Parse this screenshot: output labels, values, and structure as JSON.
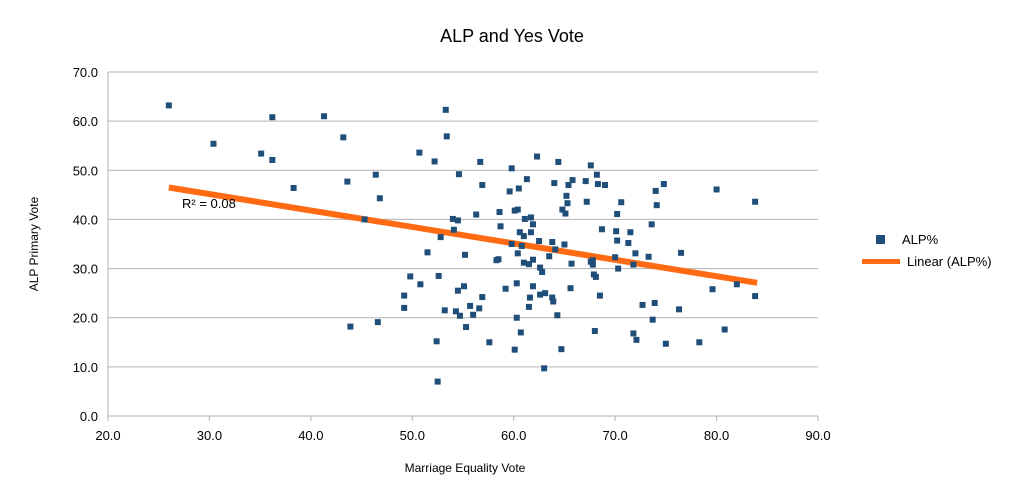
{
  "chart_data": {
    "type": "scatter",
    "title": "ALP and Yes Vote",
    "xlabel": "Marriage Equality Vote",
    "ylabel": "ALP Primary Vote",
    "xlim": [
      20,
      90
    ],
    "ylim": [
      0,
      70
    ],
    "x_ticks": [
      "20.0",
      "30.0",
      "40.0",
      "50.0",
      "60.0",
      "70.0",
      "80.0",
      "90.0"
    ],
    "y_ticks": [
      "0.0",
      "10.0",
      "20.0",
      "30.0",
      "40.0",
      "50.0",
      "60.0",
      "70.0"
    ],
    "grid": "horizontal",
    "legend": "right",
    "series": [
      {
        "name": "ALP%",
        "color": "#1f4e79",
        "marker": "square",
        "points": [
          [
            26.0,
            63.2
          ],
          [
            30.4,
            55.4
          ],
          [
            35.1,
            53.4
          ],
          [
            36.2,
            60.8
          ],
          [
            36.2,
            52.1
          ],
          [
            38.3,
            46.4
          ],
          [
            41.3,
            61.0
          ],
          [
            43.2,
            56.7
          ],
          [
            43.6,
            47.7
          ],
          [
            43.9,
            18.2
          ],
          [
            45.3,
            40.0
          ],
          [
            46.4,
            49.1
          ],
          [
            46.8,
            44.3
          ],
          [
            46.6,
            19.1
          ],
          [
            49.2,
            24.5
          ],
          [
            49.2,
            22.0
          ],
          [
            49.8,
            28.4
          ],
          [
            50.7,
            53.6
          ],
          [
            50.8,
            26.8
          ],
          [
            51.5,
            33.3
          ],
          [
            52.2,
            51.8
          ],
          [
            52.4,
            15.2
          ],
          [
            52.5,
            7.0
          ],
          [
            52.6,
            28.5
          ],
          [
            52.8,
            36.4
          ],
          [
            53.3,
            62.3
          ],
          [
            53.4,
            56.9
          ],
          [
            53.2,
            21.5
          ],
          [
            54.0,
            40.1
          ],
          [
            54.1,
            37.9
          ],
          [
            54.3,
            21.3
          ],
          [
            54.5,
            39.8
          ],
          [
            54.5,
            25.5
          ],
          [
            54.6,
            49.2
          ],
          [
            54.7,
            20.4
          ],
          [
            55.1,
            26.4
          ],
          [
            55.2,
            32.8
          ],
          [
            55.3,
            18.1
          ],
          [
            55.7,
            22.4
          ],
          [
            56.0,
            20.6
          ],
          [
            56.3,
            41.0
          ],
          [
            56.6,
            21.9
          ],
          [
            56.7,
            51.7
          ],
          [
            56.9,
            47.0
          ],
          [
            56.9,
            24.2
          ],
          [
            57.6,
            15.0
          ],
          [
            58.3,
            31.7
          ],
          [
            58.5,
            31.9
          ],
          [
            58.6,
            41.5
          ],
          [
            58.7,
            38.6
          ],
          [
            59.2,
            25.9
          ],
          [
            59.6,
            45.7
          ],
          [
            59.8,
            50.4
          ],
          [
            59.8,
            35.0
          ],
          [
            60.1,
            13.5
          ],
          [
            60.1,
            41.8
          ],
          [
            60.3,
            20.0
          ],
          [
            60.3,
            27.0
          ],
          [
            60.4,
            42.0
          ],
          [
            60.4,
            33.1
          ],
          [
            60.5,
            46.3
          ],
          [
            60.6,
            37.4
          ],
          [
            60.7,
            17.0
          ],
          [
            60.8,
            34.6
          ],
          [
            61.0,
            36.6
          ],
          [
            61.0,
            31.2
          ],
          [
            61.1,
            40.1
          ],
          [
            61.3,
            48.2
          ],
          [
            61.5,
            30.9
          ],
          [
            61.5,
            22.2
          ],
          [
            61.6,
            24.1
          ],
          [
            61.7,
            40.4
          ],
          [
            61.7,
            37.4
          ],
          [
            61.9,
            39.0
          ],
          [
            61.9,
            31.8
          ],
          [
            61.9,
            26.4
          ],
          [
            62.3,
            52.8
          ],
          [
            62.5,
            35.6
          ],
          [
            62.6,
            30.2
          ],
          [
            62.6,
            24.7
          ],
          [
            62.8,
            29.3
          ],
          [
            63.0,
            9.7
          ],
          [
            63.1,
            25.0
          ],
          [
            63.5,
            32.5
          ],
          [
            63.8,
            35.4
          ],
          [
            63.8,
            24.1
          ],
          [
            63.9,
            23.3
          ],
          [
            64.0,
            47.4
          ],
          [
            64.1,
            33.9
          ],
          [
            64.3,
            20.5
          ],
          [
            64.4,
            51.7
          ],
          [
            64.7,
            13.6
          ],
          [
            64.8,
            42.0
          ],
          [
            65.0,
            34.9
          ],
          [
            65.1,
            41.2
          ],
          [
            65.2,
            44.8
          ],
          [
            65.3,
            43.3
          ],
          [
            65.4,
            47.0
          ],
          [
            65.6,
            26.0
          ],
          [
            65.7,
            31.0
          ],
          [
            65.8,
            48.0
          ],
          [
            67.1,
            47.8
          ],
          [
            67.2,
            43.6
          ],
          [
            67.6,
            51.0
          ],
          [
            67.6,
            31.4
          ],
          [
            67.8,
            31.7
          ],
          [
            67.8,
            30.8
          ],
          [
            67.9,
            28.8
          ],
          [
            68.0,
            17.3
          ],
          [
            68.1,
            28.3
          ],
          [
            68.2,
            49.1
          ],
          [
            68.3,
            47.2
          ],
          [
            68.5,
            24.5
          ],
          [
            68.7,
            38.0
          ],
          [
            69.0,
            47.0
          ],
          [
            70.0,
            32.3
          ],
          [
            70.1,
            37.6
          ],
          [
            70.2,
            41.1
          ],
          [
            70.2,
            35.7
          ],
          [
            70.3,
            30.0
          ],
          [
            70.6,
            43.5
          ],
          [
            71.3,
            35.2
          ],
          [
            71.5,
            37.4
          ],
          [
            71.8,
            30.8
          ],
          [
            71.8,
            16.8
          ],
          [
            72.0,
            33.1
          ],
          [
            72.1,
            15.5
          ],
          [
            72.7,
            22.6
          ],
          [
            73.3,
            32.4
          ],
          [
            73.6,
            39.0
          ],
          [
            73.7,
            19.6
          ],
          [
            73.9,
            23.0
          ],
          [
            74.0,
            45.8
          ],
          [
            74.1,
            42.9
          ],
          [
            74.8,
            47.2
          ],
          [
            75.0,
            14.7
          ],
          [
            76.3,
            21.7
          ],
          [
            76.5,
            33.2
          ],
          [
            78.3,
            15.0
          ],
          [
            79.6,
            25.8
          ],
          [
            80.0,
            46.1
          ],
          [
            80.8,
            17.6
          ],
          [
            82.0,
            26.8
          ],
          [
            83.8,
            43.6
          ],
          [
            83.8,
            24.4
          ]
        ]
      }
    ],
    "trendline": {
      "name": "Linear (ALP%)",
      "color": "#ff6a13",
      "x": [
        26.0,
        84.0
      ],
      "y": [
        46.5,
        27.1
      ],
      "label": "R² = 0.08"
    }
  }
}
